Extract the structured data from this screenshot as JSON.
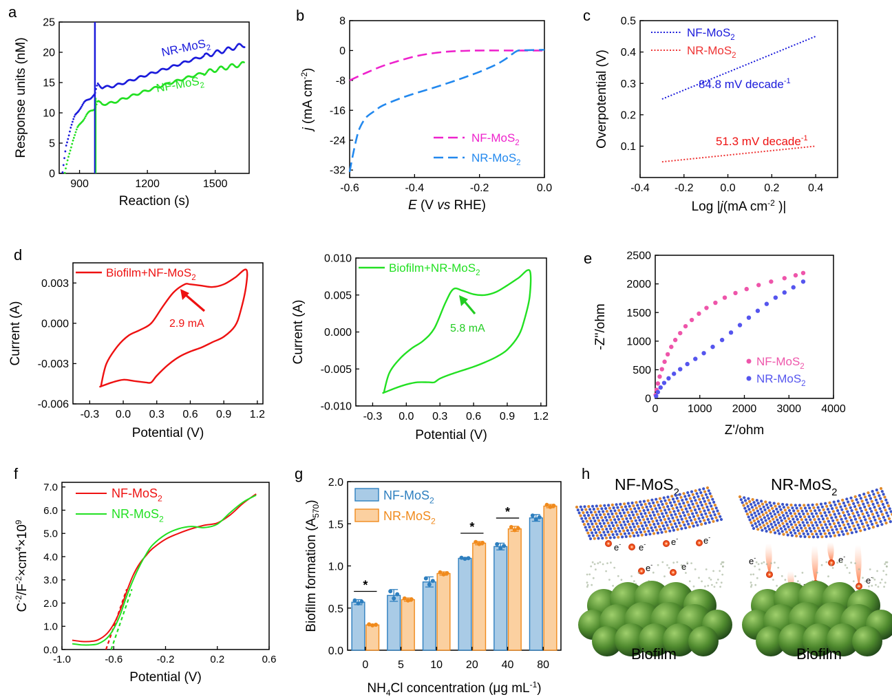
{
  "chart_data": [
    {
      "panel": "a",
      "type": "scatter",
      "xlabel": "Reaction (s)",
      "ylabel": "Response units (nM)",
      "xlim": [
        810,
        1650
      ],
      "ylim": [
        0,
        25
      ],
      "xticks": [
        900,
        1200,
        1500
      ],
      "yticks": [
        0,
        5,
        10,
        15,
        20,
        25
      ],
      "injection_x": 968,
      "series": [
        {
          "name": "NR-MoS2",
          "color": "#1a1adb",
          "x": [
            825,
            840,
            860,
            880,
            900,
            920,
            940,
            960,
            968,
            980,
            1000,
            1050,
            1100,
            1200,
            1300,
            1400,
            1500,
            1560,
            1600,
            1630
          ],
          "y": [
            0,
            4.5,
            7.5,
            9.5,
            10.7,
            11.6,
            12.3,
            12.8,
            13.0,
            14.8,
            14.2,
            14.4,
            15.0,
            16.3,
            17.5,
            18.8,
            19.9,
            20.5,
            21.0,
            21.2
          ]
        },
        {
          "name": "NF-MoS2",
          "color": "#22e022",
          "x": [
            835,
            850,
            870,
            890,
            910,
            930,
            950,
            968,
            980,
            1000,
            1050,
            1100,
            1200,
            1300,
            1400,
            1500,
            1560,
            1600,
            1630
          ],
          "y": [
            0,
            2.5,
            5.5,
            7.4,
            8.6,
            9.6,
            10.3,
            10.8,
            11.9,
            11.4,
            11.7,
            12.4,
            13.7,
            14.9,
            16.1,
            17.1,
            17.6,
            17.9,
            18.1
          ]
        }
      ]
    },
    {
      "panel": "b",
      "type": "line",
      "xlabel": "E (V vs RHE)",
      "ylabel": "j (mA cm-2)",
      "xlim": [
        -0.6,
        0.0
      ],
      "ylim": [
        -34,
        8
      ],
      "xticks": [
        -0.6,
        -0.4,
        -0.2,
        0.0
      ],
      "yticks": [
        8,
        0,
        -8,
        -16,
        -24,
        -32
      ],
      "series": [
        {
          "name": "NF-MoS2",
          "color": "#ee22cc",
          "x": [
            -0.6,
            -0.55,
            -0.5,
            -0.45,
            -0.4,
            -0.35,
            -0.3,
            -0.25,
            -0.2,
            -0.1,
            0.0
          ],
          "y": [
            -8.0,
            -6.0,
            -4.2,
            -2.8,
            -1.6,
            -0.8,
            -0.3,
            -0.1,
            0.0,
            0.0,
            0.0
          ]
        },
        {
          "name": "NR-MoS2",
          "color": "#2288ee",
          "x": [
            -0.6,
            -0.59,
            -0.58,
            -0.57,
            -0.55,
            -0.52,
            -0.5,
            -0.45,
            -0.4,
            -0.35,
            -0.3,
            -0.25,
            -0.2,
            -0.15,
            -0.12,
            -0.1,
            -0.08,
            -0.05,
            0.0
          ],
          "y": [
            -32.5,
            -28,
            -24,
            -21,
            -18,
            -16,
            -14.8,
            -13,
            -11.5,
            -10.2,
            -8.8,
            -7.3,
            -5.7,
            -3.8,
            -2.3,
            -1.0,
            0.0,
            0.1,
            0.2
          ]
        }
      ]
    },
    {
      "panel": "c",
      "type": "line",
      "xlabel": "Log |j(mA cm-2 )|",
      "ylabel": "Overpotential (V)",
      "xlim": [
        -0.4,
        0.5
      ],
      "ylim": [
        0.0,
        0.5
      ],
      "xticks": [
        -0.4,
        -0.2,
        0.0,
        0.2,
        0.4
      ],
      "yticks": [
        0.1,
        0.2,
        0.3,
        0.4,
        0.5
      ],
      "series": [
        {
          "name": "NF-MoS2",
          "color": "#1a1adb",
          "x": [
            -0.3,
            0.4
          ],
          "y": [
            0.25,
            0.45
          ]
        },
        {
          "name": "NR-MoS2",
          "color": "#ee3333",
          "x": [
            -0.3,
            0.4
          ],
          "y": [
            0.05,
            0.1
          ]
        }
      ],
      "annotations": [
        {
          "text": "84.8 mV decade",
          "sup": "-1",
          "color": "#1a1adb"
        },
        {
          "text": "51.3 mV decade",
          "sup": "-1",
          "color": "#ee1111"
        }
      ]
    },
    {
      "panel": "d",
      "type": "line",
      "xlabel": "Potential (V)",
      "ylabel": "Current (A)",
      "xlim": [
        -0.45,
        1.25
      ],
      "ylim": [
        -0.006,
        0.0045
      ],
      "xticks": [
        -0.3,
        0.0,
        0.3,
        0.6,
        0.9,
        1.2
      ],
      "yticks": [
        0.003,
        0.0,
        -0.003,
        -0.006
      ],
      "ytick_labels": [
        "0.003",
        "0.000",
        "-0.003",
        "-0.006"
      ],
      "series": [
        {
          "name": "Biofilm+NF-MoS2",
          "color": "#ee1111",
          "x": [
            -0.2,
            -0.15,
            -0.05,
            0.05,
            0.15,
            0.25,
            0.35,
            0.45,
            0.55,
            0.6,
            0.7,
            0.8,
            0.9,
            1.0,
            1.1,
            1.1,
            1.05,
            1.0,
            0.9,
            0.8,
            0.7,
            0.6,
            0.5,
            0.4,
            0.3,
            0.25,
            0.2,
            0.1,
            0.0,
            -0.1,
            -0.2,
            -0.2
          ],
          "y": [
            -0.0047,
            -0.003,
            -0.0017,
            -0.0009,
            -0.0005,
            0.0,
            0.0012,
            0.0023,
            0.0029,
            0.0029,
            0.0028,
            0.0027,
            0.0029,
            0.0034,
            0.004,
            0.0028,
            0.0009,
            -0.0002,
            -0.001,
            -0.0014,
            -0.0018,
            -0.0021,
            -0.0025,
            -0.0031,
            -0.0039,
            -0.0044,
            -0.0044,
            -0.0043,
            -0.0042,
            -0.0044,
            -0.0047,
            -0.0047
          ]
        }
      ],
      "annotations": [
        {
          "text": "2.9 mA",
          "color": "#ee1111"
        }
      ]
    },
    {
      "panel": "d2",
      "type": "line",
      "xlabel": "Potential (V)",
      "ylabel": "Current (A)",
      "xlim": [
        -0.45,
        1.25
      ],
      "ylim": [
        -0.01,
        0.01
      ],
      "xticks": [
        -0.3,
        0.0,
        0.3,
        0.6,
        0.9,
        1.2
      ],
      "yticks": [
        0.01,
        0.005,
        0.0,
        -0.005,
        -0.01
      ],
      "ytick_labels": [
        "0.010",
        "0.005",
        "0.000",
        "-0.005",
        "-0.010"
      ],
      "series": [
        {
          "name": "Biofilm+NR-MoS2",
          "color": "#22e022",
          "x": [
            -0.2,
            -0.15,
            -0.05,
            0.05,
            0.15,
            0.25,
            0.35,
            0.42,
            0.5,
            0.6,
            0.7,
            0.8,
            0.9,
            1.0,
            1.1,
            1.1,
            1.05,
            1.0,
            0.9,
            0.8,
            0.7,
            0.6,
            0.5,
            0.4,
            0.3,
            0.25,
            0.2,
            0.1,
            0.0,
            -0.1,
            -0.2,
            -0.2
          ],
          "y": [
            -0.0082,
            -0.0055,
            -0.0035,
            -0.0022,
            -0.0012,
            0.0005,
            0.004,
            0.0058,
            0.0056,
            0.0051,
            0.005,
            0.0054,
            0.0063,
            0.0073,
            0.0083,
            0.0048,
            0.0015,
            -0.0005,
            -0.0024,
            -0.0034,
            -0.0041,
            -0.0047,
            -0.0052,
            -0.0057,
            -0.0063,
            -0.0068,
            -0.0068,
            -0.0068,
            -0.0071,
            -0.0076,
            -0.0082,
            -0.0082
          ]
        }
      ],
      "annotations": [
        {
          "text": "5.8 mA",
          "color": "#22cc22"
        }
      ]
    },
    {
      "panel": "e",
      "type": "scatter",
      "xlabel": "Z'/ohm",
      "ylabel": "-Z''/ohm",
      "xlim": [
        0,
        4000
      ],
      "ylim": [
        0,
        2500
      ],
      "xticks": [
        0,
        1000,
        2000,
        3000,
        4000
      ],
      "yticks": [
        0,
        500,
        1000,
        1500,
        2000,
        2500
      ],
      "series": [
        {
          "name": "NF-MoS2",
          "color": "#ee55aa",
          "x": [
            10,
            30,
            60,
            100,
            150,
            210,
            280,
            360,
            450,
            560,
            680,
            820,
            980,
            1150,
            1350,
            1560,
            1800,
            2050,
            2320,
            2600,
            2900,
            3150,
            3320
          ],
          "y": [
            60,
            150,
            260,
            380,
            510,
            640,
            770,
            900,
            1020,
            1140,
            1260,
            1370,
            1480,
            1580,
            1670,
            1760,
            1840,
            1910,
            1980,
            2040,
            2100,
            2150,
            2190
          ]
        },
        {
          "name": "NR-MoS2",
          "color": "#5555ee",
          "x": [
            20,
            60,
            120,
            200,
            300,
            420,
            560,
            720,
            900,
            1090,
            1290,
            1500,
            1700,
            1900,
            2100,
            2300,
            2500,
            2700,
            2900,
            3100,
            3320
          ],
          "y": [
            40,
            110,
            190,
            270,
            350,
            430,
            510,
            600,
            690,
            790,
            900,
            1020,
            1150,
            1280,
            1410,
            1530,
            1650,
            1760,
            1850,
            1940,
            2040
          ]
        }
      ]
    },
    {
      "panel": "f",
      "type": "line",
      "xlabel": "Potential (V)",
      "ylabel": "C-2/F-2×cm4×109",
      "xlim": [
        -1.0,
        0.6
      ],
      "ylim": [
        0.0,
        7.2
      ],
      "xticks": [
        -1.0,
        -0.6,
        -0.2,
        0.2,
        0.6
      ],
      "yticks": [
        0.0,
        1.0,
        2.0,
        3.0,
        4.0,
        5.0,
        6.0,
        7.0
      ],
      "series": [
        {
          "name": "NF-MoS2",
          "color": "#ee1111",
          "x": [
            -0.92,
            -0.85,
            -0.78,
            -0.72,
            -0.65,
            -0.6,
            -0.55,
            -0.5,
            -0.45,
            -0.4,
            -0.35,
            -0.3,
            -0.2,
            -0.1,
            0.0,
            0.1,
            0.2,
            0.3,
            0.4,
            0.5
          ],
          "y": [
            0.4,
            0.35,
            0.35,
            0.42,
            0.7,
            1.1,
            1.7,
            2.5,
            3.2,
            3.7,
            4.05,
            4.35,
            4.75,
            5.0,
            5.2,
            5.35,
            5.45,
            5.8,
            6.3,
            6.7
          ]
        },
        {
          "name": "NR-MoS2",
          "color": "#22e022",
          "x": [
            -0.92,
            -0.85,
            -0.78,
            -0.72,
            -0.65,
            -0.6,
            -0.55,
            -0.5,
            -0.45,
            -0.4,
            -0.35,
            -0.3,
            -0.2,
            -0.1,
            0.0,
            0.1,
            0.2,
            0.3,
            0.4,
            0.5
          ],
          "y": [
            0.25,
            0.2,
            0.2,
            0.25,
            0.5,
            0.9,
            1.5,
            2.3,
            3.0,
            3.6,
            4.1,
            4.5,
            4.95,
            5.2,
            5.3,
            5.25,
            5.4,
            5.9,
            6.35,
            6.65
          ]
        }
      ],
      "fit_lines": [
        {
          "color": "#ee1111",
          "x": [
            -0.66,
            -0.5
          ],
          "y": [
            0.0,
            2.6
          ]
        },
        {
          "color": "#22e022",
          "x": [
            -0.62,
            -0.46
          ],
          "y": [
            0.0,
            2.6
          ]
        }
      ]
    },
    {
      "panel": "g",
      "type": "bar",
      "xlabel": "NH4Cl concentration (μg mL-1)",
      "ylabel": "Biofilm formation (A570)",
      "categories": [
        "0",
        "5",
        "10",
        "20",
        "40",
        "80"
      ],
      "ylim": [
        0.0,
        2.0
      ],
      "yticks": [
        0.0,
        0.5,
        1.0,
        1.5,
        2.0
      ],
      "series": [
        {
          "name": "NF-MoS2",
          "color": "#a9cbe6",
          "edge": "#2e7fbf",
          "values": [
            0.57,
            0.65,
            0.81,
            1.09,
            1.23,
            1.57
          ],
          "errors": [
            0.03,
            0.07,
            0.06,
            0.01,
            0.04,
            0.04
          ]
        },
        {
          "name": "NR-MoS2",
          "color": "#fbd0a0",
          "edge": "#f08a1c",
          "values": [
            0.3,
            0.6,
            0.91,
            1.27,
            1.44,
            1.71
          ],
          "errors": [
            0.01,
            0.02,
            0.02,
            0.02,
            0.03,
            0.02
          ]
        }
      ],
      "significance": [
        {
          "category": "0",
          "mark": "*"
        },
        {
          "category": "20",
          "mark": "*"
        },
        {
          "category": "40",
          "mark": "*"
        }
      ]
    }
  ],
  "panel_letters": [
    "a",
    "b",
    "c",
    "d",
    "e",
    "f",
    "g",
    "h"
  ],
  "schematic": {
    "left_title": "NF-MoS",
    "left_title_sub": "2",
    "right_title": "NR-MoS",
    "right_title_sub": "2",
    "electron_label": "e",
    "electron_sup": "-",
    "bottom_label": "Biofilm"
  }
}
